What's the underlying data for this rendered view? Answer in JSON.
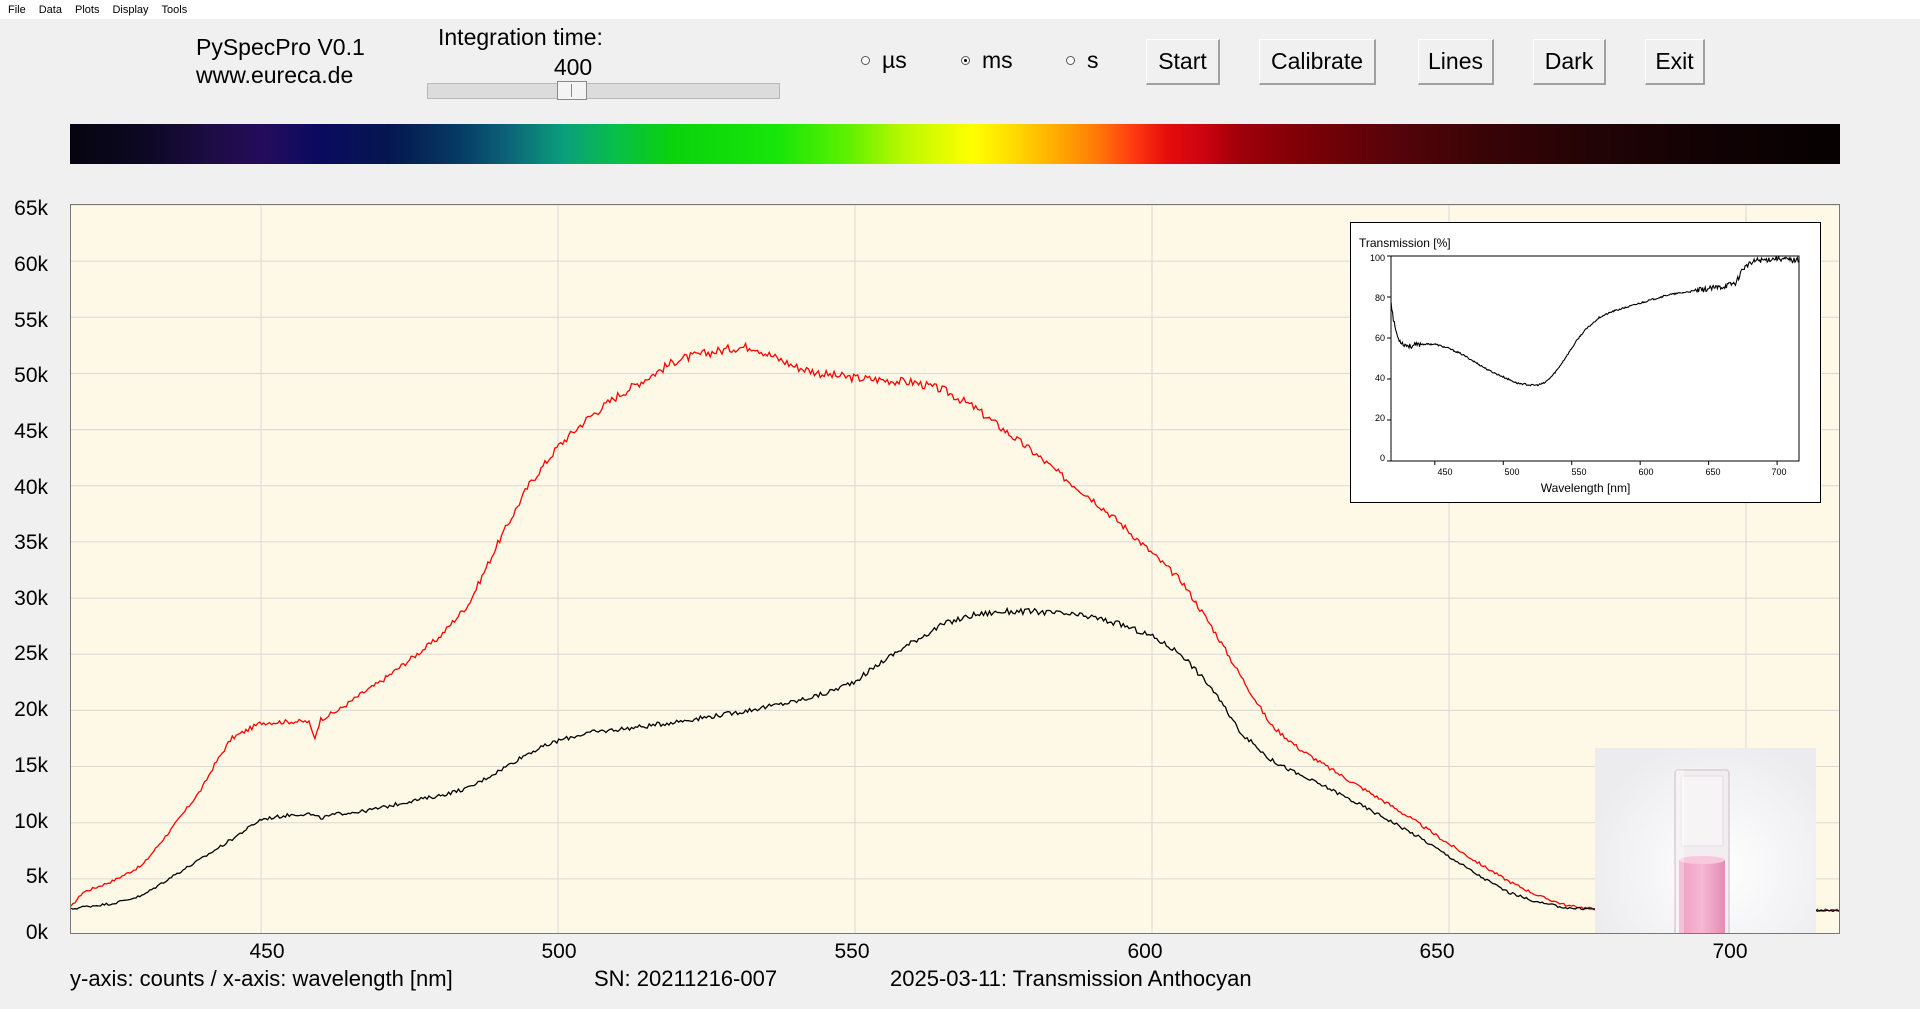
{
  "menu": [
    "File",
    "Data",
    "Plots",
    "Display",
    "Tools"
  ],
  "app": {
    "name": "PySpecPro V0.1",
    "url": "www.eureca.de"
  },
  "integration": {
    "label": "Integration time:",
    "value": "400"
  },
  "units": [
    {
      "label": "µs",
      "selected": false
    },
    {
      "label": "ms",
      "selected": true
    },
    {
      "label": "s",
      "selected": false
    }
  ],
  "buttons": {
    "start": "Start",
    "calibrate": "Calibrate",
    "lines": "Lines",
    "dark": "Dark",
    "exit": "Exit"
  },
  "footer": {
    "axes": "y-axis: counts / x-axis: wavelength [nm]",
    "sn": "SN: 20211216-007",
    "title": "2025-03-11: Transmission Anthocyan"
  },
  "chart_data": [
    {
      "type": "line",
      "xlim": [
        418,
        716
      ],
      "ylim": [
        0,
        65000
      ],
      "xticks": [
        "450",
        "500",
        "550",
        "600",
        "650",
        "700"
      ],
      "yticks": [
        "0k",
        "5k",
        "10k",
        "15k",
        "20k",
        "25k",
        "30k",
        "35k",
        "40k",
        "45k",
        "50k",
        "55k",
        "60k",
        "65k"
      ],
      "grid": true,
      "colors": {
        "background": "#fdf9e6",
        "grid": "#d8d8d8"
      },
      "series": [
        {
          "color": "#ff0000",
          "x": [
            418,
            420,
            425,
            430,
            435,
            440,
            442,
            445,
            450,
            455,
            458,
            459,
            460,
            463,
            467,
            470,
            475,
            480,
            485,
            490,
            495,
            500,
            505,
            510,
            515,
            520,
            525,
            530,
            533,
            535,
            540,
            545,
            550,
            555,
            560,
            565,
            570,
            575,
            580,
            585,
            590,
            595,
            600,
            605,
            610,
            615,
            620,
            625,
            630,
            635,
            640,
            645,
            650,
            655,
            660,
            665,
            670,
            675,
            680,
            690,
            700,
            716
          ],
          "y": [
            2500,
            3800,
            4800,
            6200,
            9500,
            13000,
            15000,
            17500,
            18900,
            19000,
            19000,
            17500,
            19200,
            20000,
            21500,
            22500,
            24500,
            26500,
            29500,
            35000,
            40000,
            43500,
            46000,
            48000,
            49600,
            51200,
            51800,
            52300,
            52400,
            51800,
            50600,
            49900,
            49600,
            49400,
            49200,
            48500,
            47000,
            45000,
            43000,
            40800,
            38800,
            36500,
            34000,
            31500,
            27500,
            23000,
            18700,
            16500,
            14800,
            13200,
            11600,
            9900,
            8100,
            6400,
            4800,
            3500,
            2600,
            2300,
            2200,
            2200,
            2200,
            2200
          ]
        },
        {
          "color": "#000000",
          "x": [
            418,
            420,
            425,
            430,
            435,
            440,
            445,
            450,
            455,
            458,
            460,
            463,
            467,
            470,
            475,
            480,
            485,
            490,
            495,
            500,
            505,
            510,
            515,
            520,
            525,
            530,
            535,
            540,
            545,
            550,
            555,
            560,
            565,
            570,
            575,
            580,
            585,
            590,
            595,
            600,
            605,
            610,
            615,
            620,
            625,
            630,
            635,
            640,
            645,
            650,
            655,
            660,
            665,
            670,
            675,
            680,
            690,
            700,
            716
          ],
          "y": [
            2300,
            2500,
            2800,
            3500,
            5200,
            6800,
            8500,
            10300,
            10700,
            10800,
            10400,
            10800,
            11000,
            11300,
            11900,
            12400,
            13100,
            14600,
            16200,
            17300,
            18000,
            18300,
            18600,
            19000,
            19400,
            19800,
            20300,
            20800,
            21500,
            22600,
            24500,
            26200,
            27700,
            28500,
            28800,
            28800,
            28600,
            28300,
            27600,
            26600,
            25000,
            22000,
            18000,
            15600,
            14200,
            13000,
            11600,
            10200,
            8700,
            7000,
            5300,
            3800,
            2900,
            2400,
            2300,
            2200,
            2200,
            2200,
            2200
          ]
        }
      ]
    },
    {
      "type": "line",
      "title": "Transmission [%]",
      "xlabel": "Wavelength [nm]",
      "xlim": [
        418,
        716
      ],
      "ylim": [
        0,
        100
      ],
      "xticks": [
        "450",
        "500",
        "550",
        "600",
        "650",
        "700"
      ],
      "yticks": [
        "0",
        "20",
        "40",
        "60",
        "80",
        "100"
      ],
      "series": [
        {
          "color": "#000000",
          "x": [
            418,
            420,
            423,
            427,
            432,
            440,
            450,
            460,
            470,
            480,
            490,
            500,
            510,
            520,
            525,
            530,
            535,
            540,
            545,
            550,
            555,
            560,
            565,
            570,
            580,
            590,
            600,
            610,
            620,
            630,
            640,
            650,
            660,
            665,
            670,
            675,
            680,
            685,
            690,
            700,
            710,
            716
          ],
          "y": [
            78,
            68,
            60,
            57,
            56,
            57,
            57,
            55,
            52,
            48,
            44,
            41,
            38,
            37,
            37,
            38,
            41,
            45,
            50,
            55,
            60,
            64,
            67,
            70,
            73,
            75,
            77,
            79,
            81,
            82,
            83,
            84,
            85,
            86,
            87,
            94,
            96,
            98,
            98,
            99,
            98,
            98
          ]
        }
      ]
    }
  ]
}
